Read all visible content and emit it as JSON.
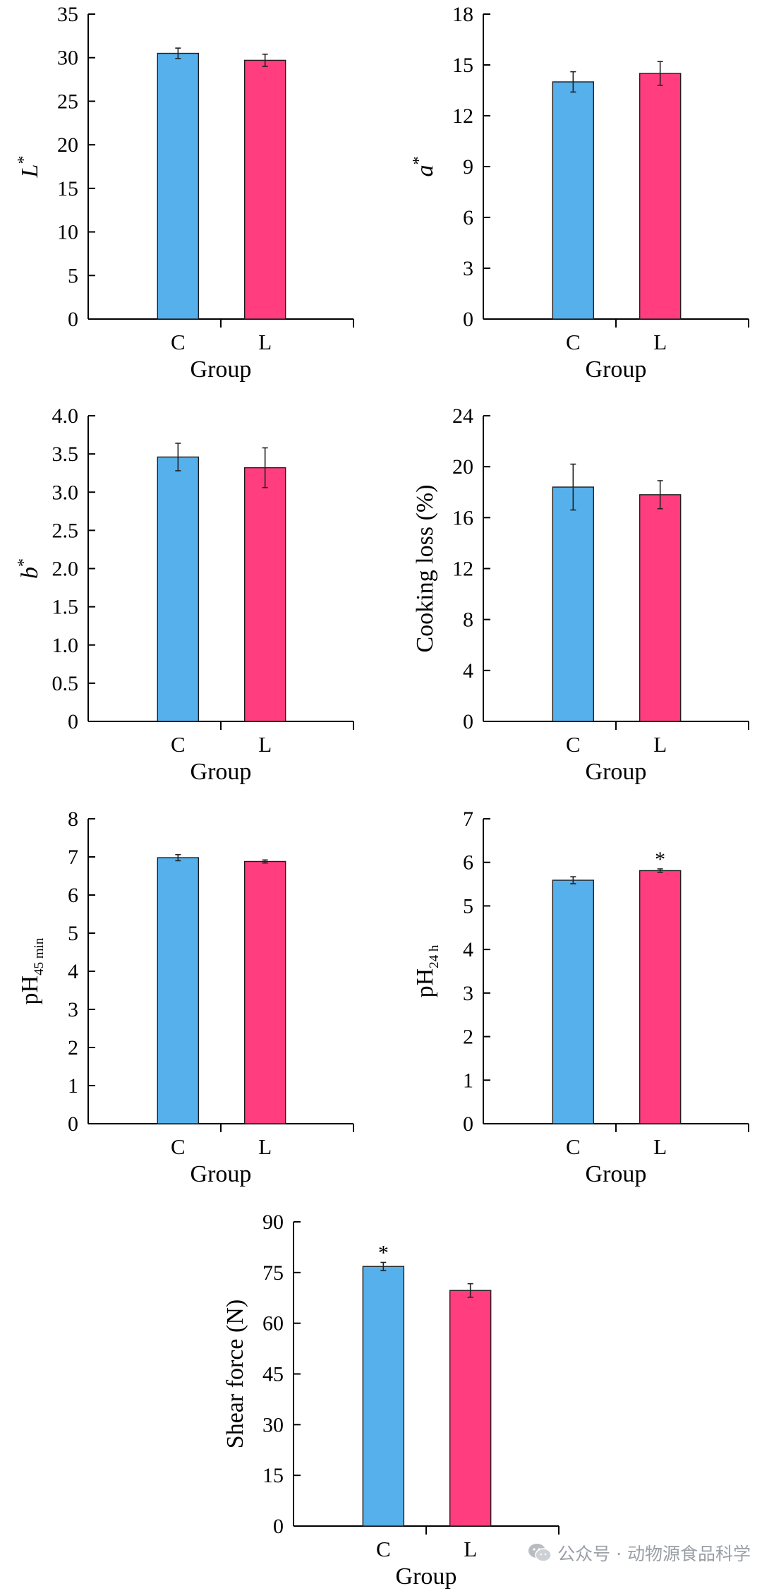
{
  "colors": {
    "C": "#56b0ec",
    "L": "#ff3d7f",
    "axis": "#000000"
  },
  "chart_data": [
    {
      "type": "bar",
      "ylabel": "L",
      "ylabel_sup": "*",
      "xlabel": "Group",
      "categories": [
        "C",
        "L"
      ],
      "values": [
        30.5,
        29.7
      ],
      "errors": [
        0.6,
        0.7
      ],
      "ylim": [
        0,
        35
      ],
      "yticks": [
        0,
        5,
        10,
        15,
        20,
        25,
        30,
        35
      ],
      "significance": [
        "",
        ""
      ]
    },
    {
      "type": "bar",
      "ylabel": "a",
      "ylabel_sup": "*",
      "xlabel": "Group",
      "categories": [
        "C",
        "L"
      ],
      "values": [
        14.0,
        14.5
      ],
      "errors": [
        0.6,
        0.7
      ],
      "ylim": [
        0,
        18
      ],
      "yticks": [
        0,
        3,
        6,
        9,
        12,
        15,
        18
      ],
      "significance": [
        "",
        ""
      ]
    },
    {
      "type": "bar",
      "ylabel": "b",
      "ylabel_sup": "*",
      "xlabel": "Group",
      "categories": [
        "C",
        "L"
      ],
      "values": [
        3.46,
        3.32
      ],
      "errors": [
        0.18,
        0.26
      ],
      "ylim": [
        0,
        4.0
      ],
      "yticks": [
        "0",
        "0.5",
        "1.0",
        "1.5",
        "2.0",
        "2.5",
        "3.0",
        "3.5",
        "4.0"
      ],
      "significance": [
        "",
        ""
      ]
    },
    {
      "type": "bar",
      "ylabel": "Cooking loss (%)",
      "xlabel": "Group",
      "categories": [
        "C",
        "L"
      ],
      "values": [
        18.4,
        17.8
      ],
      "errors": [
        1.8,
        1.1
      ],
      "ylim": [
        0,
        24
      ],
      "yticks": [
        0,
        4,
        8,
        12,
        16,
        20,
        24
      ],
      "significance": [
        "",
        ""
      ]
    },
    {
      "type": "bar",
      "ylabel": "pH",
      "ylabel_sub": "45 min",
      "xlabel": "Group",
      "categories": [
        "C",
        "L"
      ],
      "values": [
        6.98,
        6.88
      ],
      "errors": [
        0.08,
        0.04
      ],
      "ylim": [
        0,
        8
      ],
      "yticks": [
        0,
        1,
        2,
        3,
        4,
        5,
        6,
        7,
        8
      ],
      "significance": [
        "",
        ""
      ]
    },
    {
      "type": "bar",
      "ylabel": "pH",
      "ylabel_sub": "24 h",
      "xlabel": "Group",
      "categories": [
        "C",
        "L"
      ],
      "values": [
        5.59,
        5.81
      ],
      "errors": [
        0.08,
        0.04
      ],
      "ylim": [
        0,
        7
      ],
      "yticks": [
        0,
        1,
        2,
        3,
        4,
        5,
        6,
        7
      ],
      "significance": [
        "",
        "*"
      ]
    },
    {
      "type": "bar",
      "ylabel": "Shear force (N)",
      "xlabel": "Group",
      "categories": [
        "C",
        "L"
      ],
      "values": [
        76.8,
        69.7
      ],
      "errors": [
        1.2,
        2.0
      ],
      "ylim": [
        0,
        90
      ],
      "yticks": [
        0,
        15,
        30,
        45,
        60,
        75,
        90
      ],
      "significance": [
        "*",
        ""
      ]
    }
  ],
  "watermark": {
    "text": "公众号 · 动物源食品科学"
  }
}
